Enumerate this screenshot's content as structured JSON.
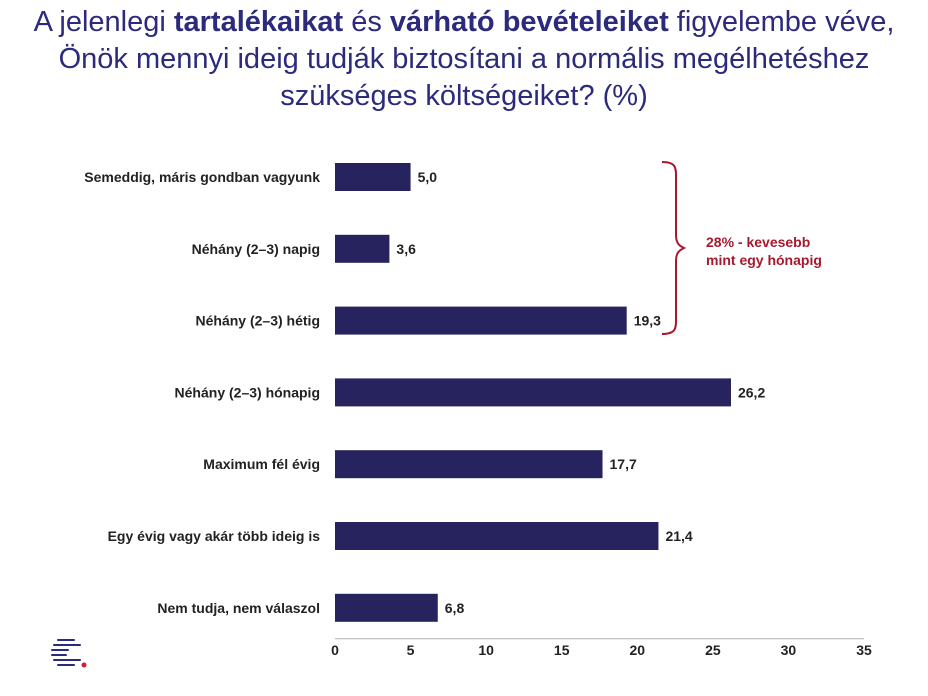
{
  "title": {
    "part1": "A jelenlegi ",
    "bold1": "tartalékaikat",
    "part2": " és ",
    "bold2": "várható bevételeiket",
    "part3": " figyelembe véve, Önök mennyi ideig tudják biztosítani a normális megélhetéshez szükséges költségeiket? (%)"
  },
  "colors": {
    "bar": "#27235f",
    "title": "#2b2a7c",
    "annotation": "#a6192e",
    "logo_red": "#d6183c",
    "logo_navy": "#2b2a7c"
  },
  "annotation": {
    "line1": "28% - kevesebb",
    "line2": "mint egy hónapig"
  },
  "logo": {
    "icon": "company-logo-icon"
  },
  "chart_data": {
    "type": "bar",
    "orientation": "horizontal",
    "categories": [
      "Semeddig, máris gondban vagyunk",
      "Néhány (2–3) napig",
      "Néhány (2–3) hétig",
      "Néhány (2–3) hónapig",
      "Maximum fél évig",
      "Egy évig vagy akár több ideig is",
      "Nem tudja, nem válaszol"
    ],
    "values": [
      5.0,
      3.6,
      19.3,
      26.2,
      17.7,
      21.4,
      6.8
    ],
    "value_labels": [
      "5,0",
      "3,6",
      "19,3",
      "26,2",
      "17,7",
      "21,4",
      "6,8"
    ],
    "xlim": [
      0,
      35
    ],
    "xticks": [
      "0",
      "5",
      "10",
      "15",
      "20",
      "25",
      "30",
      "35"
    ],
    "grid": false,
    "legend": "none"
  }
}
